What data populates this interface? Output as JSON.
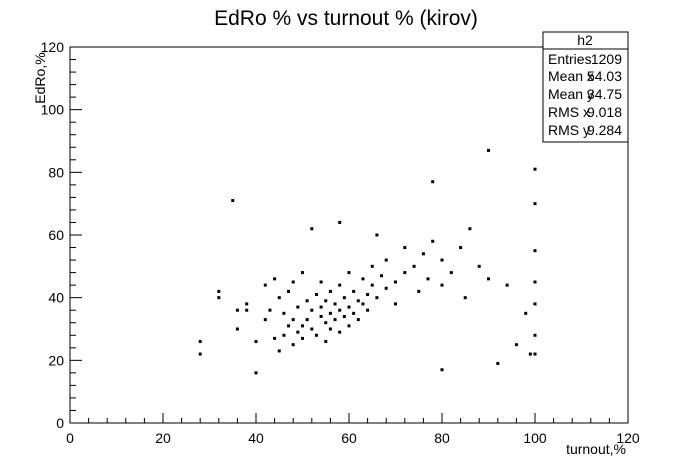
{
  "chart_data": {
    "type": "scatter",
    "title": "EdRo % vs turnout % (kirov)",
    "xlabel": "turnout,%",
    "ylabel": "EdRo,%",
    "xlim": [
      0,
      120
    ],
    "ylim": [
      0,
      120
    ],
    "x_ticks": [
      0,
      20,
      40,
      60,
      80,
      100,
      120
    ],
    "y_ticks": [
      0,
      20,
      40,
      60,
      80,
      100,
      120
    ],
    "grid": false,
    "stats_box": {
      "title": "h2",
      "rows": [
        {
          "label": "Entries",
          "value": "1209"
        },
        {
          "label": "Mean x",
          "value": "54.03"
        },
        {
          "label": "Mean y",
          "value": "34.75"
        },
        {
          "label": "RMS x",
          "value": "9.018"
        },
        {
          "label": "RMS y",
          "value": "9.284"
        }
      ]
    },
    "points": [
      [
        28,
        22
      ],
      [
        28,
        26
      ],
      [
        32,
        40
      ],
      [
        32,
        42
      ],
      [
        35,
        71
      ],
      [
        36,
        30
      ],
      [
        36,
        36
      ],
      [
        38,
        36
      ],
      [
        38,
        38
      ],
      [
        40,
        16
      ],
      [
        40,
        26
      ],
      [
        42,
        33
      ],
      [
        42,
        44
      ],
      [
        43,
        36
      ],
      [
        44,
        46
      ],
      [
        44,
        27
      ],
      [
        45,
        40
      ],
      [
        45,
        23
      ],
      [
        46,
        35
      ],
      [
        46,
        28
      ],
      [
        47,
        31
      ],
      [
        47,
        42
      ],
      [
        48,
        33
      ],
      [
        48,
        25
      ],
      [
        48,
        45
      ],
      [
        49,
        29
      ],
      [
        49,
        37
      ],
      [
        50,
        31
      ],
      [
        50,
        27
      ],
      [
        50,
        48
      ],
      [
        51,
        39
      ],
      [
        51,
        33
      ],
      [
        52,
        30
      ],
      [
        52,
        36
      ],
      [
        52,
        62
      ],
      [
        53,
        41
      ],
      [
        53,
        28
      ],
      [
        54,
        34
      ],
      [
        54,
        37
      ],
      [
        54,
        45
      ],
      [
        55,
        32
      ],
      [
        55,
        39
      ],
      [
        55,
        26
      ],
      [
        56,
        35
      ],
      [
        56,
        42
      ],
      [
        56,
        30
      ],
      [
        57,
        38
      ],
      [
        57,
        33
      ],
      [
        58,
        36
      ],
      [
        58,
        29
      ],
      [
        58,
        44
      ],
      [
        59,
        40
      ],
      [
        59,
        34
      ],
      [
        60,
        37
      ],
      [
        60,
        31
      ],
      [
        60,
        48
      ],
      [
        61,
        42
      ],
      [
        61,
        35
      ],
      [
        62,
        39
      ],
      [
        62,
        33
      ],
      [
        63,
        46
      ],
      [
        63,
        38
      ],
      [
        64,
        41
      ],
      [
        64,
        36
      ],
      [
        65,
        44
      ],
      [
        65,
        50
      ],
      [
        66,
        40
      ],
      [
        67,
        47
      ],
      [
        68,
        43
      ],
      [
        68,
        52
      ],
      [
        70,
        45
      ],
      [
        70,
        38
      ],
      [
        72,
        48
      ],
      [
        72,
        56
      ],
      [
        74,
        50
      ],
      [
        75,
        42
      ],
      [
        76,
        54
      ],
      [
        77,
        46
      ],
      [
        78,
        58
      ],
      [
        78,
        77
      ],
      [
        80,
        44
      ],
      [
        80,
        52
      ],
      [
        82,
        48
      ],
      [
        84,
        56
      ],
      [
        85,
        40
      ],
      [
        86,
        62
      ],
      [
        88,
        50
      ],
      [
        90,
        87
      ],
      [
        90,
        46
      ],
      [
        92,
        19
      ],
      [
        94,
        44
      ],
      [
        96,
        25
      ],
      [
        98,
        35
      ],
      [
        99,
        22
      ],
      [
        100,
        81
      ],
      [
        100,
        70
      ],
      [
        100,
        55
      ],
      [
        100,
        45
      ],
      [
        100,
        38
      ],
      [
        100,
        28
      ],
      [
        100,
        22
      ],
      [
        80,
        17
      ],
      [
        66,
        60
      ],
      [
        58,
        64
      ]
    ]
  }
}
